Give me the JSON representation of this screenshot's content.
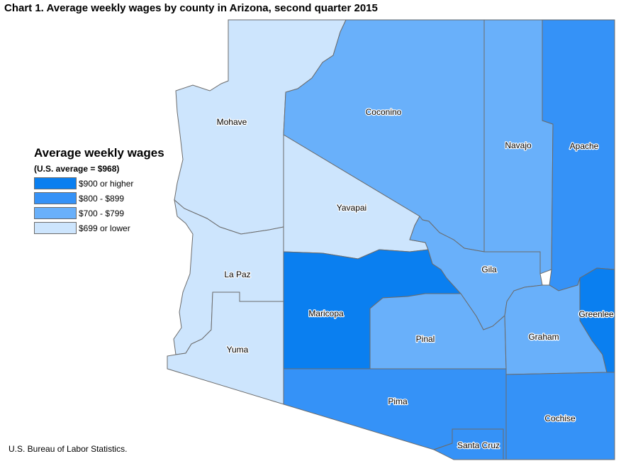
{
  "title": "Chart 1. Average weekly wages by county in Arizona, second quarter 2015",
  "legend": {
    "title": "Average weekly wages",
    "subtitle": "(U.S. average = $968)",
    "items": [
      {
        "label": "$900 or higher",
        "color": "#0a7ff0"
      },
      {
        "label": "$800 - $899",
        "color": "#3592f7"
      },
      {
        "label": "$700 - $799",
        "color": "#69b0fa"
      },
      {
        "label": "$699 or lower",
        "color": "#cde5fd"
      }
    ]
  },
  "counties": [
    {
      "name": "Mohave",
      "wage_class": "$699 or lower",
      "color": "#cde5fd"
    },
    {
      "name": "Coconino",
      "wage_class": "$700 - $799",
      "color": "#69b0fa"
    },
    {
      "name": "Navajo",
      "wage_class": "$700 - $799",
      "color": "#69b0fa"
    },
    {
      "name": "Apache",
      "wage_class": "$800 - $899",
      "color": "#3592f7"
    },
    {
      "name": "Yavapai",
      "wage_class": "$699 or lower",
      "color": "#cde5fd"
    },
    {
      "name": "La Paz",
      "wage_class": "$699 or lower",
      "color": "#cde5fd"
    },
    {
      "name": "Yuma",
      "wage_class": "$699 or lower",
      "color": "#cde5fd"
    },
    {
      "name": "Maricopa",
      "wage_class": "$900 or higher",
      "color": "#0a7ff0"
    },
    {
      "name": "Gila",
      "wage_class": "$700 - $799",
      "color": "#69b0fa"
    },
    {
      "name": "Pinal",
      "wage_class": "$700 - $799",
      "color": "#69b0fa"
    },
    {
      "name": "Graham",
      "wage_class": "$700 - $799",
      "color": "#69b0fa"
    },
    {
      "name": "Greenlee",
      "wage_class": "$900 or higher",
      "color": "#0a7ff0"
    },
    {
      "name": "Pima",
      "wage_class": "$800 - $899",
      "color": "#3592f7"
    },
    {
      "name": "Santa Cruz",
      "wage_class": "$800 - $899",
      "color": "#3592f7"
    },
    {
      "name": "Cochise",
      "wage_class": "$800 - $899",
      "color": "#3592f7"
    }
  ],
  "source": "U.S. Bureau of Labor Statistics."
}
